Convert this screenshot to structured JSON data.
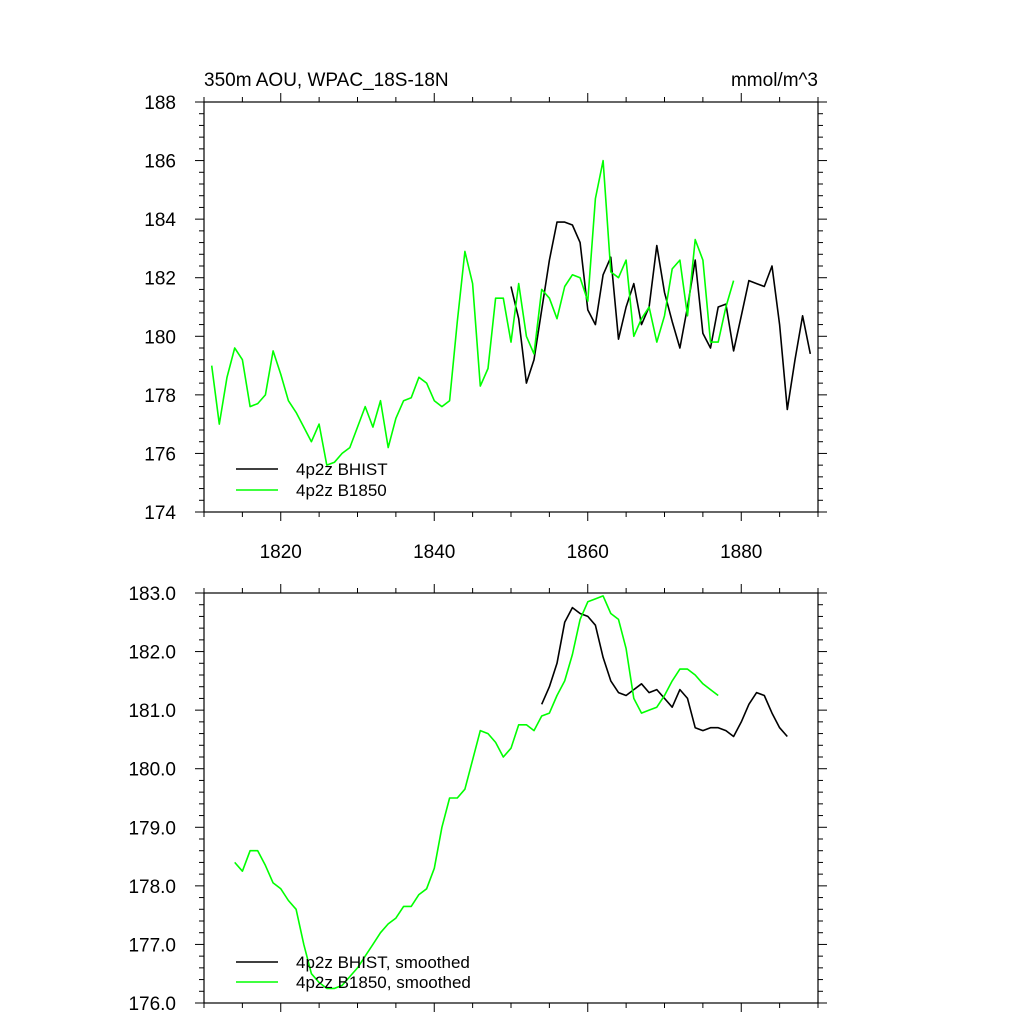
{
  "chart_data": [
    {
      "type": "line",
      "title": "350m AOU, WPAC_18S-18N",
      "units": "mmol/m^3",
      "xlim": [
        1810,
        1890
      ],
      "ylim": [
        174,
        188
      ],
      "x_ticks": [
        1820,
        1840,
        1860,
        1880
      ],
      "y_ticks": [
        "174",
        "176",
        "178",
        "180",
        "182",
        "184",
        "186",
        "188"
      ],
      "legend_position": "bottom-left",
      "series": [
        {
          "name": "4p2z BHIST",
          "color": "#000000",
          "x": [
            1850,
            1851,
            1852,
            1853,
            1854,
            1855,
            1856,
            1857,
            1858,
            1859,
            1860,
            1861,
            1862,
            1863,
            1864,
            1865,
            1866,
            1867,
            1868,
            1869,
            1870,
            1871,
            1872,
            1873,
            1874,
            1875,
            1876,
            1877,
            1878,
            1879,
            1880,
            1881,
            1882,
            1883,
            1884,
            1885,
            1886,
            1887,
            1888,
            1889
          ],
          "values": [
            181.7,
            180.6,
            178.4,
            179.2,
            180.9,
            182.6,
            183.9,
            183.9,
            183.8,
            183.2,
            180.9,
            180.4,
            182.1,
            182.7,
            179.9,
            181.0,
            181.8,
            180.4,
            181.0,
            183.1,
            181.5,
            180.5,
            179.6,
            181.0,
            182.6,
            180.1,
            179.6,
            181.0,
            181.1,
            179.5,
            180.7,
            181.9,
            181.8,
            181.7,
            182.4,
            180.4,
            177.5,
            179.2,
            180.7,
            179.4
          ]
        },
        {
          "name": "4p2z B1850",
          "color": "#00ff00",
          "x": [
            1811,
            1812,
            1813,
            1814,
            1815,
            1816,
            1817,
            1818,
            1819,
            1820,
            1821,
            1822,
            1823,
            1824,
            1825,
            1826,
            1827,
            1828,
            1829,
            1830,
            1831,
            1832,
            1833,
            1834,
            1835,
            1836,
            1837,
            1838,
            1839,
            1840,
            1841,
            1842,
            1843,
            1844,
            1845,
            1846,
            1847,
            1848,
            1849,
            1850,
            1851,
            1852,
            1853,
            1854,
            1855,
            1856,
            1857,
            1858,
            1859,
            1860,
            1861,
            1862,
            1863,
            1864,
            1865,
            1866,
            1867,
            1868,
            1869,
            1870,
            1871,
            1872,
            1873,
            1874,
            1875,
            1876,
            1877,
            1878,
            1879
          ],
          "values": [
            179.0,
            177.0,
            178.6,
            179.6,
            179.2,
            177.6,
            177.7,
            178.0,
            179.5,
            178.7,
            177.8,
            177.4,
            176.9,
            176.4,
            177.0,
            175.6,
            175.7,
            176.0,
            176.2,
            176.9,
            177.6,
            176.9,
            177.8,
            176.2,
            177.2,
            177.8,
            177.9,
            178.6,
            178.4,
            177.8,
            177.6,
            177.8,
            180.5,
            182.9,
            181.8,
            178.3,
            178.9,
            181.3,
            181.3,
            179.8,
            181.8,
            180.0,
            179.4,
            181.6,
            181.3,
            180.6,
            181.7,
            182.1,
            182.0,
            181.2,
            184.7,
            186.0,
            182.2,
            182.0,
            182.6,
            180.0,
            180.6,
            181.0,
            179.8,
            180.7,
            182.3,
            182.6,
            180.7,
            183.3,
            182.6,
            179.8,
            179.8,
            181.0,
            181.9
          ]
        }
      ]
    },
    {
      "type": "line",
      "title": "",
      "xlim": [
        1810,
        1890
      ],
      "ylim": [
        176.0,
        183.0
      ],
      "y_ticks": [
        "176.0",
        "177.0",
        "178.0",
        "179.0",
        "180.0",
        "181.0",
        "182.0",
        "183.0"
      ],
      "legend_position": "bottom-left",
      "series": [
        {
          "name": "4p2z BHIST, smoothed",
          "color": "#000000",
          "x": [
            1854,
            1855,
            1856,
            1857,
            1858,
            1859,
            1860,
            1861,
            1862,
            1863,
            1864,
            1865,
            1866,
            1867,
            1868,
            1869,
            1870,
            1871,
            1872,
            1873,
            1874,
            1875,
            1876,
            1877,
            1878,
            1879,
            1880,
            1881,
            1882,
            1883,
            1884,
            1885,
            1886
          ],
          "values": [
            181.1,
            181.4,
            181.8,
            182.5,
            182.75,
            182.65,
            182.6,
            182.45,
            181.9,
            181.5,
            181.3,
            181.25,
            181.35,
            181.45,
            181.3,
            181.35,
            181.2,
            181.05,
            181.35,
            181.2,
            180.7,
            180.65,
            180.7,
            180.7,
            180.65,
            180.55,
            180.8,
            181.1,
            181.3,
            181.25,
            180.95,
            180.7,
            180.55
          ]
        },
        {
          "name": "4p2z B1850, smoothed",
          "color": "#00ff00",
          "x": [
            1814,
            1815,
            1816,
            1817,
            1818,
            1819,
            1820,
            1821,
            1822,
            1823,
            1824,
            1825,
            1826,
            1827,
            1828,
            1829,
            1830,
            1831,
            1832,
            1833,
            1834,
            1835,
            1836,
            1837,
            1838,
            1839,
            1840,
            1841,
            1842,
            1843,
            1844,
            1845,
            1846,
            1847,
            1848,
            1849,
            1850,
            1851,
            1852,
            1853,
            1854,
            1855,
            1856,
            1857,
            1858,
            1859,
            1860,
            1861,
            1862,
            1863,
            1864,
            1865,
            1866,
            1867,
            1868,
            1869,
            1870,
            1871,
            1872,
            1873,
            1874,
            1875,
            1876,
            1877
          ],
          "values": [
            178.4,
            178.25,
            178.6,
            178.6,
            178.35,
            178.05,
            177.95,
            177.75,
            177.6,
            177.0,
            176.5,
            176.35,
            176.25,
            176.25,
            176.3,
            176.45,
            176.6,
            176.8,
            177.0,
            177.2,
            177.35,
            177.45,
            177.65,
            177.65,
            177.85,
            177.95,
            178.3,
            179.0,
            179.5,
            179.5,
            179.65,
            180.15,
            180.65,
            180.6,
            180.45,
            180.2,
            180.35,
            180.75,
            180.75,
            180.65,
            180.9,
            180.95,
            181.25,
            181.5,
            181.95,
            182.55,
            182.85,
            182.9,
            182.95,
            182.65,
            182.55,
            182.05,
            181.2,
            180.95,
            181.0,
            181.05,
            181.25,
            181.5,
            181.7,
            181.7,
            181.6,
            181.45,
            181.35,
            181.25
          ]
        }
      ]
    }
  ]
}
